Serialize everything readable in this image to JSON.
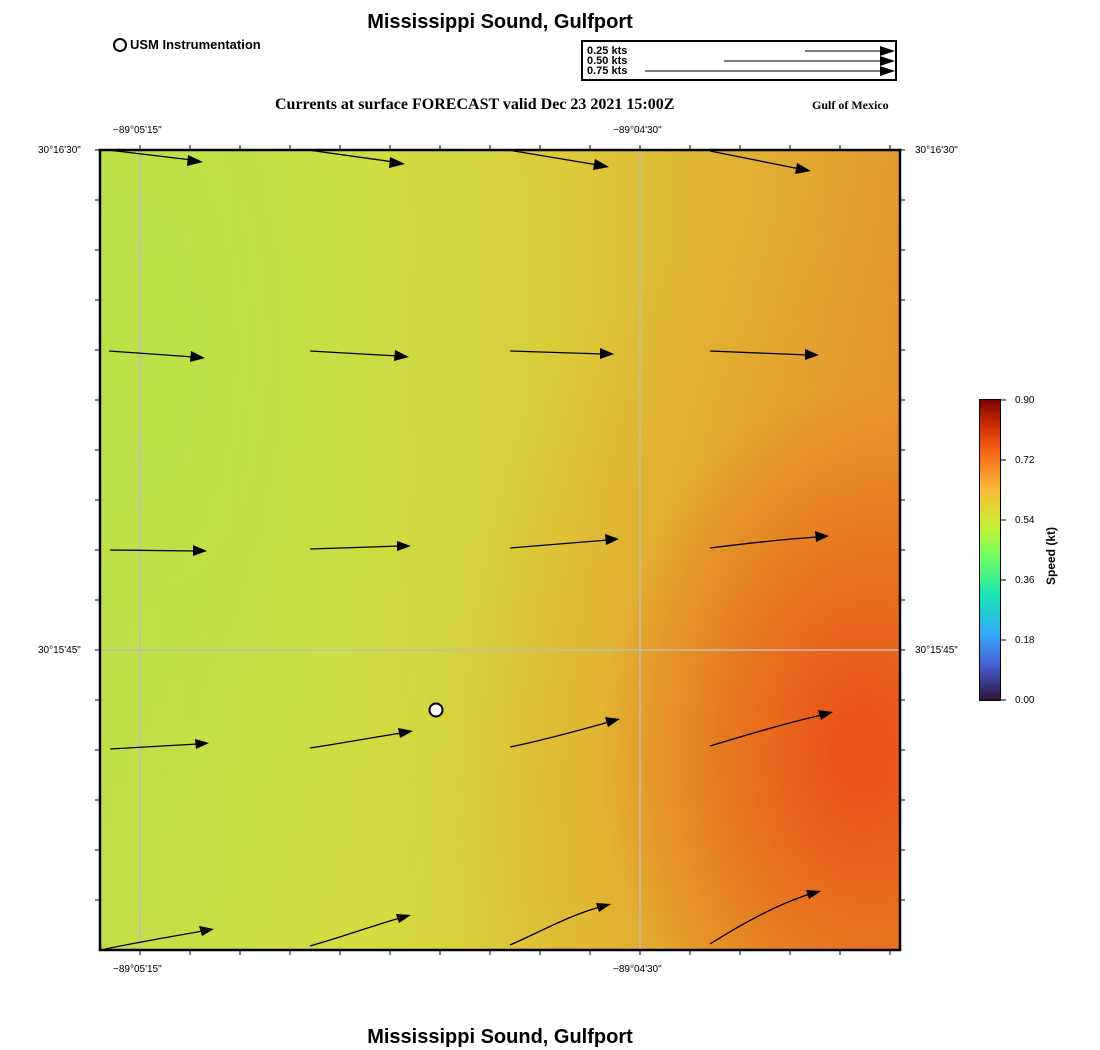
{
  "title_top": "Mississippi Sound, Gulfport",
  "title_bottom": "Mississippi Sound, Gulfport",
  "legend": {
    "instrument_label": "USM Instrumentation"
  },
  "reference_vectors": [
    {
      "label": "0.25 kts",
      "speed": 0.25
    },
    {
      "label": "0.50 kts",
      "speed": 0.5
    },
    {
      "label": "0.75 kts",
      "speed": 0.75
    }
  ],
  "subtitle": "Currents at surface FORECAST valid Dec 23 2021 15:00Z",
  "region_label": "Gulf of Mexico",
  "longitude_labels": [
    "−89°05'15\"",
    "−89°04'30\""
  ],
  "latitude_labels": [
    "30°16'30\"",
    "30°15'45\""
  ],
  "colorbar": {
    "title": "Speed (kt)",
    "ticks": [
      "0.90",
      "0.72",
      "0.54",
      "0.36",
      "0.18",
      "0.00"
    ],
    "range": [
      0.0,
      0.9
    ]
  },
  "station": {
    "name": "USM Instrumentation",
    "lon": "−89°05'00\"",
    "lat": "30°15'39\""
  }
}
